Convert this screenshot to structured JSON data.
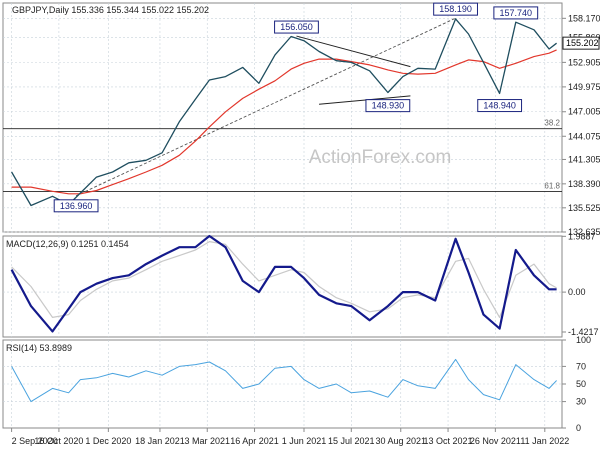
{
  "chart_data": [
    {
      "type": "line",
      "panel": "price",
      "title": "GBPJPY,Daily",
      "ohlc_header": "155.336 155.344 155.022 155.202",
      "watermark": "ActionForex.com",
      "ylim": [
        132.635,
        160.0
      ],
      "y_ticks": [
        "158.170",
        "155.860",
        "152.905",
        "149.975",
        "147.005",
        "144.075",
        "141.305",
        "138.390",
        "135.525",
        "132.635"
      ],
      "last_price_label": "155.202",
      "last_price_value": 155.202,
      "hlines": [
        {
          "label": "38.2",
          "value": 144.98
        },
        {
          "label": "61.8",
          "value": 137.48
        }
      ],
      "price_annotations": [
        {
          "label": "156.050",
          "x": "2021-05-25",
          "y": 156.05
        },
        {
          "label": "158.190",
          "x": "2021-10-20",
          "y": 158.19
        },
        {
          "label": "157.740",
          "x": "2021-12-15",
          "y": 157.74
        },
        {
          "label": "148.930",
          "x": "2021-08-18",
          "y": 148.93
        },
        {
          "label": "148.940",
          "x": "2021-11-30",
          "y": 148.94
        },
        {
          "label": "136.960",
          "x": "2020-11-01",
          "y": 136.96
        }
      ],
      "x": [
        "2020-09-02",
        "2020-09-20",
        "2020-10-10",
        "2020-10-25",
        "2020-11-05",
        "2020-11-20",
        "2020-12-05",
        "2020-12-20",
        "2021-01-05",
        "2021-01-20",
        "2021-02-05",
        "2021-02-20",
        "2021-03-05",
        "2021-03-20",
        "2021-04-05",
        "2021-04-20",
        "2021-05-05",
        "2021-05-20",
        "2021-06-01",
        "2021-06-15",
        "2021-07-01",
        "2021-07-15",
        "2021-08-01",
        "2021-08-18",
        "2021-09-01",
        "2021-09-15",
        "2021-10-01",
        "2021-10-20",
        "2021-11-01",
        "2021-11-15",
        "2021-11-30",
        "2021-12-15",
        "2022-01-01",
        "2022-01-15",
        "2022-01-22"
      ],
      "series": [
        {
          "name": "",
          "values": [
            139.8,
            135.8,
            136.9,
            135.9,
            137.3,
            139.2,
            139.8,
            140.9,
            141.2,
            142.1,
            145.8,
            148.5,
            150.8,
            151.2,
            152.3,
            150.4,
            153.8,
            156.0,
            155.5,
            154.2,
            153.1,
            152.9,
            151.9,
            149.3,
            151.2,
            152.2,
            152.1,
            158.1,
            156.3,
            152.9,
            149.2,
            157.7,
            156.8,
            154.5,
            155.2
          ]
        },
        {
          "name": "",
          "values": [
            138.0,
            138.0,
            137.5,
            137.2,
            137.2,
            137.6,
            138.3,
            139.0,
            139.8,
            140.6,
            141.8,
            143.5,
            145.2,
            147.0,
            148.6,
            149.7,
            150.7,
            152.1,
            152.8,
            153.3,
            153.3,
            153.0,
            152.6,
            152.0,
            151.6,
            151.5,
            151.6,
            152.6,
            153.2,
            153.0,
            152.2,
            152.8,
            153.6,
            154.0,
            154.4
          ]
        }
      ]
    },
    {
      "type": "line",
      "panel": "macd",
      "title": "MACD(12,26,9) 0.1251 0.1454",
      "ylim": [
        -1.6,
        2.0
      ],
      "y_ticks": [
        "1.9887",
        "0.00",
        "-1.4217"
      ],
      "x": [
        "2020-09-02",
        "2020-09-20",
        "2020-10-10",
        "2020-10-25",
        "2020-11-05",
        "2020-11-20",
        "2020-12-05",
        "2020-12-20",
        "2021-01-05",
        "2021-01-20",
        "2021-02-05",
        "2021-02-20",
        "2021-03-05",
        "2021-03-20",
        "2021-04-05",
        "2021-04-20",
        "2021-05-05",
        "2021-05-20",
        "2021-06-01",
        "2021-06-15",
        "2021-07-01",
        "2021-07-15",
        "2021-08-01",
        "2021-08-18",
        "2021-09-01",
        "2021-09-15",
        "2021-10-01",
        "2021-10-20",
        "2021-11-01",
        "2021-11-15",
        "2021-11-30",
        "2021-12-15",
        "2022-01-01",
        "2022-01-15",
        "2022-01-22"
      ],
      "series": [
        {
          "name": "",
          "values": [
            0.8,
            -0.5,
            -1.4,
            -0.6,
            0.0,
            0.3,
            0.5,
            0.6,
            1.0,
            1.3,
            1.6,
            1.6,
            2.0,
            1.6,
            0.4,
            0.0,
            0.9,
            0.9,
            0.5,
            -0.1,
            -0.4,
            -0.5,
            -1.0,
            -0.5,
            0.0,
            0.0,
            -0.3,
            1.9,
            0.7,
            -0.8,
            -1.3,
            1.5,
            0.6,
            0.1,
            0.1
          ]
        },
        {
          "name": "",
          "values": [
            0.9,
            0.2,
            -0.9,
            -0.8,
            -0.3,
            0.1,
            0.4,
            0.5,
            0.8,
            1.1,
            1.3,
            1.5,
            1.8,
            1.7,
            1.0,
            0.4,
            0.6,
            0.8,
            0.7,
            0.2,
            -0.2,
            -0.4,
            -0.7,
            -0.6,
            -0.2,
            -0.1,
            -0.2,
            1.1,
            1.2,
            0.1,
            -0.9,
            0.6,
            1.0,
            0.3,
            0.15
          ]
        }
      ]
    },
    {
      "type": "line",
      "panel": "rsi",
      "title": "RSI(14) 53.8989",
      "ylim": [
        0,
        100
      ],
      "y_ticks": [
        "100",
        "70",
        "50",
        "30",
        "0"
      ],
      "x": [
        "2020-09-02",
        "2020-09-20",
        "2020-10-10",
        "2020-10-25",
        "2020-11-05",
        "2020-11-20",
        "2020-12-05",
        "2020-12-20",
        "2021-01-05",
        "2021-01-20",
        "2021-02-05",
        "2021-02-20",
        "2021-03-05",
        "2021-03-20",
        "2021-04-05",
        "2021-04-20",
        "2021-05-05",
        "2021-05-20",
        "2021-06-01",
        "2021-06-15",
        "2021-07-01",
        "2021-07-15",
        "2021-08-01",
        "2021-08-18",
        "2021-09-01",
        "2021-09-15",
        "2021-10-01",
        "2021-10-20",
        "2021-11-01",
        "2021-11-15",
        "2021-11-30",
        "2021-12-15",
        "2022-01-01",
        "2022-01-15",
        "2022-01-22"
      ],
      "series": [
        {
          "name": "",
          "values": [
            70,
            30,
            45,
            40,
            55,
            57,
            62,
            58,
            65,
            60,
            70,
            72,
            75,
            65,
            45,
            50,
            68,
            70,
            55,
            45,
            50,
            40,
            42,
            35,
            55,
            48,
            45,
            78,
            55,
            38,
            32,
            72,
            55,
            45,
            54
          ]
        }
      ]
    }
  ],
  "x_tick_labels": [
    {
      "date": "2020-09-02",
      "label": "2 Sep 2020"
    },
    {
      "date": "2020-10-16",
      "label": "16 Oct 2020"
    },
    {
      "date": "2020-12-01",
      "label": "1 Dec 2020"
    },
    {
      "date": "2021-01-18",
      "label": "18 Jan 2021"
    },
    {
      "date": "2021-03-03",
      "label": "3 Mar 2021"
    },
    {
      "date": "2021-04-16",
      "label": "16 Apr 2021"
    },
    {
      "date": "2021-06-01",
      "label": "1 Jun 2021"
    },
    {
      "date": "2021-07-15",
      "label": "15 Jul 2021"
    },
    {
      "date": "2021-08-30",
      "label": "30 Aug 2021"
    },
    {
      "date": "2021-10-13",
      "label": "13 Oct 2021"
    },
    {
      "date": "2021-11-26",
      "label": "26 Nov 2021"
    },
    {
      "date": "2022-01-11",
      "label": "11 Jan 2022"
    }
  ],
  "colors": {
    "price": "#1f4e5f",
    "sma": "#e2372c",
    "macd": "#141a8c",
    "signal": "#c9c9c9",
    "rsi": "#4aa3df",
    "grid": "#c8d2da",
    "frame": "#8a8a8a",
    "text": "#222222",
    "trendline": "#222222"
  }
}
